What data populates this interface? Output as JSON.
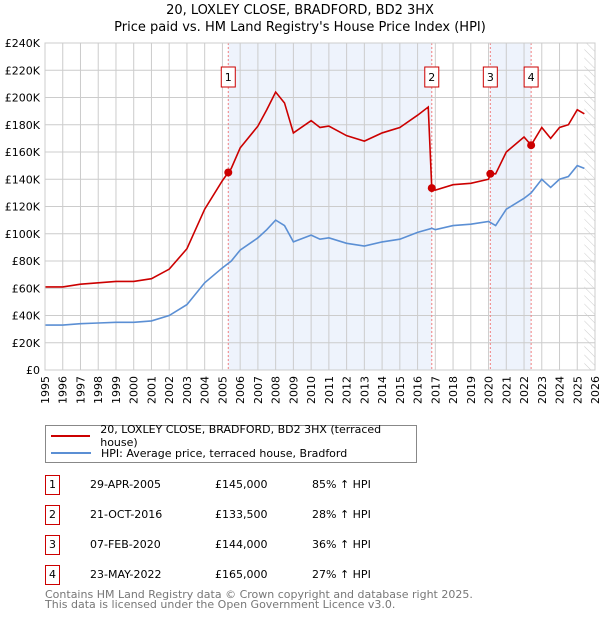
{
  "chart_data": {
    "type": "line",
    "title": "20, LOXLEY CLOSE, BRADFORD, BD2 3HX",
    "subtitle": "Price paid vs. HM Land Registry's House Price Index (HPI)",
    "xlim": [
      1995,
      2026
    ],
    "ylim": [
      0,
      240000
    ],
    "x_ticks": [
      "1995",
      "1996",
      "1997",
      "1998",
      "1999",
      "2000",
      "2001",
      "2002",
      "2003",
      "2004",
      "2005",
      "2006",
      "2007",
      "2008",
      "2009",
      "2010",
      "2011",
      "2012",
      "2013",
      "2014",
      "2015",
      "2016",
      "2017",
      "2018",
      "2019",
      "2020",
      "2021",
      "2022",
      "2023",
      "2024",
      "2025",
      "2026"
    ],
    "y_ticks": [
      "£0",
      "£20K",
      "£40K",
      "£60K",
      "£80K",
      "£100K",
      "£120K",
      "£140K",
      "£160K",
      "£180K",
      "£200K",
      "£220K",
      "£240K"
    ],
    "grid": true,
    "series": [
      {
        "name": "20, LOXLEY CLOSE, BRADFORD, BD2 3HX (terraced house)",
        "color": "#cc0000",
        "x": [
          1995,
          1996,
          1997,
          1998,
          1999,
          2000,
          2001,
          2002,
          2003,
          2004,
          2005,
          2005.33,
          2005.5,
          2006,
          2007,
          2007.5,
          2008,
          2008.5,
          2009,
          2010,
          2010.5,
          2011,
          2012,
          2013,
          2014,
          2015,
          2016,
          2016.6,
          2016.8,
          2017,
          2018,
          2019,
          2020,
          2020.1,
          2020.4,
          2021,
          2022,
          2022.4,
          2023,
          2023.5,
          2024,
          2024.5,
          2025,
          2025.4
        ],
        "y": [
          61,
          61,
          63,
          64,
          65,
          65,
          67,
          74,
          89,
          118,
          139,
          145,
          148,
          163,
          179,
          191,
          204,
          196,
          174,
          183,
          178,
          179,
          172,
          168,
          174,
          178,
          187,
          193,
          133.5,
          132,
          136,
          137,
          140,
          144,
          144,
          160,
          171,
          165,
          178,
          170,
          178,
          180,
          191,
          188
        ]
      },
      {
        "name": "HPI: Average price, terraced house, Bradford",
        "color": "#5b8fd4",
        "x": [
          1995,
          1996,
          1997,
          1998,
          1999,
          2000,
          2001,
          2002,
          2003,
          2004,
          2005,
          2005.5,
          2006,
          2007,
          2007.5,
          2008,
          2008.5,
          2009,
          2010,
          2010.5,
          2011,
          2012,
          2013,
          2014,
          2015,
          2016,
          2016.8,
          2017,
          2018,
          2019,
          2020,
          2020.4,
          2021,
          2022,
          2022.4,
          2023,
          2023.5,
          2024,
          2024.5,
          2025,
          2025.4
        ],
        "y": [
          33,
          33,
          34,
          34.5,
          35,
          35,
          36,
          40,
          48,
          64,
          75,
          80,
          88,
          97,
          103,
          110,
          106,
          94,
          99,
          96,
          97,
          93,
          91,
          94,
          96,
          101,
          104,
          103,
          106,
          107,
          109,
          106,
          118,
          126,
          130,
          140,
          134,
          140,
          142,
          150,
          148
        ]
      }
    ],
    "y_unit": "thousands GBP",
    "shaded_ranges": [
      [
        2005.33,
        2016.8
      ],
      [
        2020.1,
        2022.4
      ]
    ],
    "forecast_from": 2025.4,
    "sales": [
      {
        "label": "1",
        "x": 2005.33,
        "date": "29-APR-2005",
        "price": "£145,000",
        "value": 145,
        "hpi": "85% ↑ HPI"
      },
      {
        "label": "2",
        "x": 2016.8,
        "date": "21-OCT-2016",
        "price": "£133,500",
        "value": 133.5,
        "hpi": "28% ↑ HPI"
      },
      {
        "label": "3",
        "x": 2020.1,
        "date": "07-FEB-2020",
        "price": "£144,000",
        "value": 144,
        "hpi": "36% ↑ HPI"
      },
      {
        "label": "4",
        "x": 2022.4,
        "date": "23-MAY-2022",
        "price": "£165,000",
        "value": 165,
        "hpi": "27% ↑ HPI"
      }
    ]
  },
  "footer": {
    "line1": "Contains HM Land Registry data © Crown copyright and database right 2025.",
    "line2": "This data is licensed under the Open Government Licence v3.0."
  }
}
